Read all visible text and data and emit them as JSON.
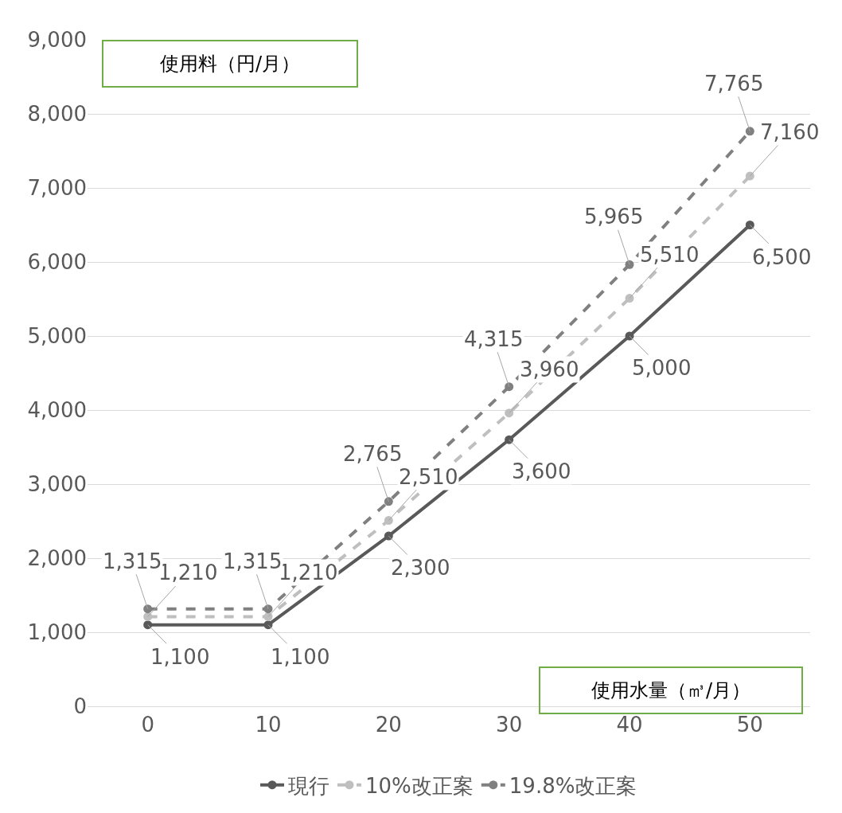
{
  "chart_data": {
    "type": "line",
    "xlabel": "使用水量（㎥/月）",
    "ylabel": "使用料（円/月）",
    "categories": [
      "0",
      "10",
      "20",
      "30",
      "40",
      "50"
    ],
    "series": [
      {
        "name": "現行",
        "color": "#595959",
        "line_style": "solid",
        "values": [
          1100,
          1100,
          2300,
          3600,
          5000,
          6500
        ],
        "value_labels": [
          "1,100",
          "1,100",
          "2,300",
          "3,600",
          "5,000",
          "6,500"
        ]
      },
      {
        "name": "10%改正案",
        "color": "#bfbfbf",
        "line_style": "dashed",
        "values": [
          1210,
          1210,
          2510,
          3960,
          5510,
          7160
        ],
        "value_labels": [
          "1,210",
          "1,210",
          "2,510",
          "3,960",
          "5,510",
          "7,160"
        ]
      },
      {
        "name": "19.8%改正案",
        "color": "#808080",
        "line_style": "dashed",
        "values": [
          1315,
          1315,
          2765,
          4315,
          5965,
          7765
        ],
        "value_labels": [
          "1,315",
          "1,315",
          "2,765",
          "4,315",
          "5,965",
          "7,765"
        ]
      }
    ],
    "ylim": [
      0,
      9000
    ],
    "yticks": [
      0,
      {
        "value": 1000,
        "label": "1,000"
      },
      {
        "value": 2000,
        "label": "2,000"
      },
      {
        "value": 3000,
        "label": "3,000"
      },
      {
        "value": 4000,
        "label": "4,000"
      },
      {
        "value": 5000,
        "label": "5,000"
      },
      {
        "value": 6000,
        "label": "6,000"
      },
      {
        "value": 7000,
        "label": "7,000"
      },
      {
        "value": 8000,
        "label": "8,000"
      },
      {
        "value": 9000,
        "label": "9,000"
      }
    ],
    "grid": "y",
    "legend": "bottom",
    "marker": "circle"
  }
}
